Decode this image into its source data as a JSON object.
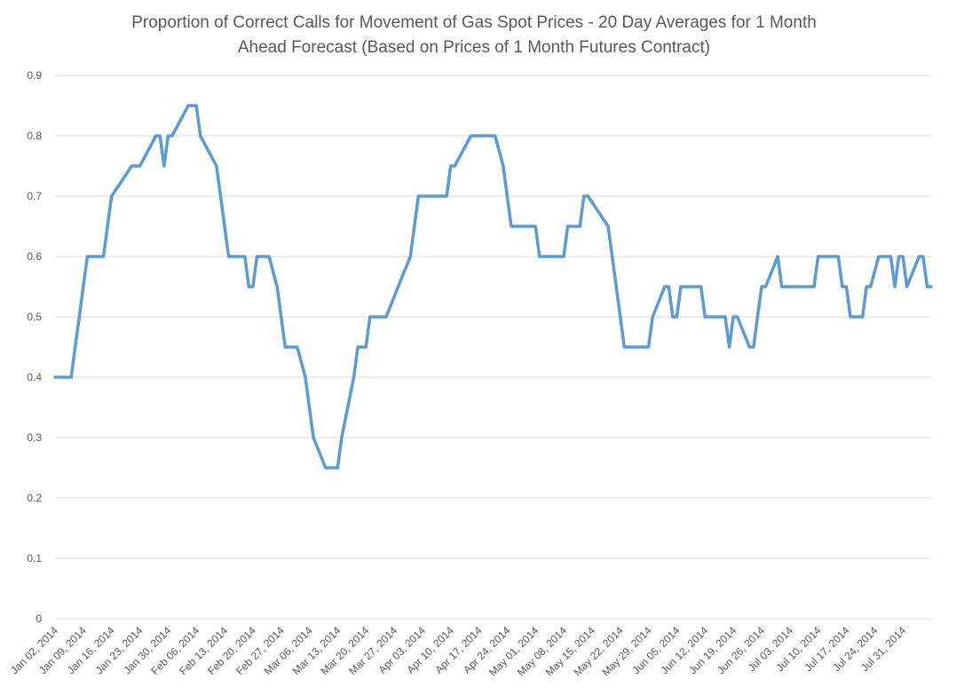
{
  "chart_data": {
    "type": "line",
    "title": "Proportion of Correct Calls for Movement of Gas Spot Prices - 20 Day Averages for 1 Month Ahead Forecast (Based on Prices of 1 Month Futures Contract)",
    "title_lines": [
      "Proportion of Correct Calls for Movement of Gas Spot Prices - 20 Day Averages for 1 Month",
      "Ahead Forecast (Based on Prices of 1 Month Futures Contract)"
    ],
    "xlabel": "",
    "ylabel": "",
    "ylim": [
      0,
      0.9
    ],
    "xlim": [
      "2014-01-02",
      "2014-08-07"
    ],
    "yticks": [
      "0",
      "0.1",
      "0.2",
      "0.3",
      "0.4",
      "0.5",
      "0.6",
      "0.7",
      "0.8",
      "0.9"
    ],
    "xticks": [
      {
        "date": "2014-01-02",
        "label": "Jan 02, 2014"
      },
      {
        "date": "2014-01-09",
        "label": "Jan 09, 2014"
      },
      {
        "date": "2014-01-16",
        "label": "Jan 16, 2014"
      },
      {
        "date": "2014-01-23",
        "label": "Jan 23, 2014"
      },
      {
        "date": "2014-01-30",
        "label": "Jan 30, 2014"
      },
      {
        "date": "2014-02-06",
        "label": "Feb 06, 2014"
      },
      {
        "date": "2014-02-13",
        "label": "Feb 13, 2014"
      },
      {
        "date": "2014-02-20",
        "label": "Feb 20, 2014"
      },
      {
        "date": "2014-02-27",
        "label": "Feb 27, 2014"
      },
      {
        "date": "2014-03-06",
        "label": "Mar 06, 2014"
      },
      {
        "date": "2014-03-13",
        "label": "Mar 13, 2014"
      },
      {
        "date": "2014-03-20",
        "label": "Mar 20, 2014"
      },
      {
        "date": "2014-03-27",
        "label": "Mar 27, 2014"
      },
      {
        "date": "2014-04-03",
        "label": "Apr 03, 2014"
      },
      {
        "date": "2014-04-10",
        "label": "Apr 10, 2014"
      },
      {
        "date": "2014-04-17",
        "label": "Apr 17, 2014"
      },
      {
        "date": "2014-04-24",
        "label": "Apr 24, 2014"
      },
      {
        "date": "2014-05-01",
        "label": "May 01, 2014"
      },
      {
        "date": "2014-05-08",
        "label": "May 08, 2014"
      },
      {
        "date": "2014-05-15",
        "label": "May 15, 2014"
      },
      {
        "date": "2014-05-22",
        "label": "May 22, 2014"
      },
      {
        "date": "2014-05-29",
        "label": "May 29, 2014"
      },
      {
        "date": "2014-06-05",
        "label": "Jun 05, 2014"
      },
      {
        "date": "2014-06-12",
        "label": "Jun 12, 2014"
      },
      {
        "date": "2014-06-19",
        "label": "Jun 19, 2014"
      },
      {
        "date": "2014-06-26",
        "label": "Jun 26, 2014"
      },
      {
        "date": "2014-07-03",
        "label": "Jul 03, 2014"
      },
      {
        "date": "2014-07-10",
        "label": "Jul 10, 2014"
      },
      {
        "date": "2014-07-17",
        "label": "Jul 17, 2014"
      },
      {
        "date": "2014-07-24",
        "label": "Jul 24, 2014"
      },
      {
        "date": "2014-07-31",
        "label": "Jul 31, 2014"
      }
    ],
    "grid": true,
    "legend": "none",
    "series": [
      {
        "color": "#5b9bd5",
        "points": [
          [
            "2014-01-02",
            0.4
          ],
          [
            "2014-01-03",
            0.4
          ],
          [
            "2014-01-06",
            0.4
          ],
          [
            "2014-01-07",
            0.45
          ],
          [
            "2014-01-08",
            0.5
          ],
          [
            "2014-01-09",
            0.55
          ],
          [
            "2014-01-10",
            0.6
          ],
          [
            "2014-01-13",
            0.6
          ],
          [
            "2014-01-14",
            0.6
          ],
          [
            "2014-01-15",
            0.65
          ],
          [
            "2014-01-16",
            0.7
          ],
          [
            "2014-01-21",
            0.75
          ],
          [
            "2014-01-22",
            0.75
          ],
          [
            "2014-01-23",
            0.75
          ],
          [
            "2014-01-27",
            0.8
          ],
          [
            "2014-01-28",
            0.8
          ],
          [
            "2014-01-29",
            0.75
          ],
          [
            "2014-01-30",
            0.8
          ],
          [
            "2014-01-31",
            0.8
          ],
          [
            "2014-02-04",
            0.85
          ],
          [
            "2014-02-05",
            0.85
          ],
          [
            "2014-02-06",
            0.85
          ],
          [
            "2014-02-07",
            0.8
          ],
          [
            "2014-02-11",
            0.75
          ],
          [
            "2014-02-12",
            0.7
          ],
          [
            "2014-02-13",
            0.65
          ],
          [
            "2014-02-14",
            0.6
          ],
          [
            "2014-02-18",
            0.6
          ],
          [
            "2014-02-19",
            0.55
          ],
          [
            "2014-02-20",
            0.55
          ],
          [
            "2014-02-21",
            0.6
          ],
          [
            "2014-02-24",
            0.6
          ],
          [
            "2014-02-26",
            0.55
          ],
          [
            "2014-02-28",
            0.45
          ],
          [
            "2014-03-03",
            0.45
          ],
          [
            "2014-03-05",
            0.4
          ],
          [
            "2014-03-06",
            0.35
          ],
          [
            "2014-03-07",
            0.3
          ],
          [
            "2014-03-10",
            0.25
          ],
          [
            "2014-03-11",
            0.25
          ],
          [
            "2014-03-12",
            0.25
          ],
          [
            "2014-03-13",
            0.25
          ],
          [
            "2014-03-14",
            0.3
          ],
          [
            "2014-03-17",
            0.4
          ],
          [
            "2014-03-18",
            0.45
          ],
          [
            "2014-03-19",
            0.45
          ],
          [
            "2014-03-20",
            0.45
          ],
          [
            "2014-03-21",
            0.5
          ],
          [
            "2014-03-24",
            0.5
          ],
          [
            "2014-03-25",
            0.5
          ],
          [
            "2014-03-28",
            0.55
          ],
          [
            "2014-03-31",
            0.6
          ],
          [
            "2014-04-01",
            0.65
          ],
          [
            "2014-04-02",
            0.7
          ],
          [
            "2014-04-03",
            0.7
          ],
          [
            "2014-04-04",
            0.7
          ],
          [
            "2014-04-07",
            0.7
          ],
          [
            "2014-04-08",
            0.7
          ],
          [
            "2014-04-09",
            0.7
          ],
          [
            "2014-04-10",
            0.75
          ],
          [
            "2014-04-11",
            0.75
          ],
          [
            "2014-04-15",
            0.8
          ],
          [
            "2014-04-16",
            0.8
          ],
          [
            "2014-04-17",
            0.8
          ],
          [
            "2014-04-18",
            0.8
          ],
          [
            "2014-04-21",
            0.8
          ],
          [
            "2014-04-23",
            0.75
          ],
          [
            "2014-04-24",
            0.7
          ],
          [
            "2014-04-25",
            0.65
          ],
          [
            "2014-04-28",
            0.65
          ],
          [
            "2014-04-29",
            0.65
          ],
          [
            "2014-04-30",
            0.65
          ],
          [
            "2014-05-01",
            0.65
          ],
          [
            "2014-05-02",
            0.6
          ],
          [
            "2014-05-05",
            0.6
          ],
          [
            "2014-05-06",
            0.6
          ],
          [
            "2014-05-07",
            0.6
          ],
          [
            "2014-05-08",
            0.6
          ],
          [
            "2014-05-09",
            0.65
          ],
          [
            "2014-05-12",
            0.65
          ],
          [
            "2014-05-13",
            0.7
          ],
          [
            "2014-05-14",
            0.7
          ],
          [
            "2014-05-19",
            0.65
          ],
          [
            "2014-05-20",
            0.6
          ],
          [
            "2014-05-21",
            0.55
          ],
          [
            "2014-05-22",
            0.5
          ],
          [
            "2014-05-23",
            0.45
          ],
          [
            "2014-05-27",
            0.45
          ],
          [
            "2014-05-28",
            0.45
          ],
          [
            "2014-05-29",
            0.45
          ],
          [
            "2014-05-30",
            0.5
          ],
          [
            "2014-06-02",
            0.55
          ],
          [
            "2014-06-03",
            0.55
          ],
          [
            "2014-06-04",
            0.5
          ],
          [
            "2014-06-05",
            0.5
          ],
          [
            "2014-06-06",
            0.55
          ],
          [
            "2014-06-09",
            0.55
          ],
          [
            "2014-06-10",
            0.55
          ],
          [
            "2014-06-11",
            0.55
          ],
          [
            "2014-06-12",
            0.5
          ],
          [
            "2014-06-16",
            0.5
          ],
          [
            "2014-06-17",
            0.5
          ],
          [
            "2014-06-18",
            0.45
          ],
          [
            "2014-06-19",
            0.5
          ],
          [
            "2014-06-20",
            0.5
          ],
          [
            "2014-06-23",
            0.45
          ],
          [
            "2014-06-24",
            0.45
          ],
          [
            "2014-06-25",
            0.5
          ],
          [
            "2014-06-26",
            0.55
          ],
          [
            "2014-06-27",
            0.55
          ],
          [
            "2014-06-30",
            0.6
          ],
          [
            "2014-07-01",
            0.55
          ],
          [
            "2014-07-02",
            0.55
          ],
          [
            "2014-07-03",
            0.55
          ],
          [
            "2014-07-07",
            0.55
          ],
          [
            "2014-07-08",
            0.55
          ],
          [
            "2014-07-09",
            0.55
          ],
          [
            "2014-07-10",
            0.6
          ],
          [
            "2014-07-11",
            0.6
          ],
          [
            "2014-07-14",
            0.6
          ],
          [
            "2014-07-15",
            0.6
          ],
          [
            "2014-07-16",
            0.55
          ],
          [
            "2014-07-17",
            0.55
          ],
          [
            "2014-07-18",
            0.5
          ],
          [
            "2014-07-21",
            0.5
          ],
          [
            "2014-07-22",
            0.55
          ],
          [
            "2014-07-23",
            0.55
          ],
          [
            "2014-07-25",
            0.6
          ],
          [
            "2014-07-28",
            0.6
          ],
          [
            "2014-07-29",
            0.55
          ],
          [
            "2014-07-30",
            0.6
          ],
          [
            "2014-07-31",
            0.6
          ],
          [
            "2014-08-01",
            0.55
          ],
          [
            "2014-08-04",
            0.6
          ],
          [
            "2014-08-05",
            0.6
          ],
          [
            "2014-08-06",
            0.55
          ],
          [
            "2014-08-07",
            0.55
          ]
        ]
      }
    ]
  }
}
